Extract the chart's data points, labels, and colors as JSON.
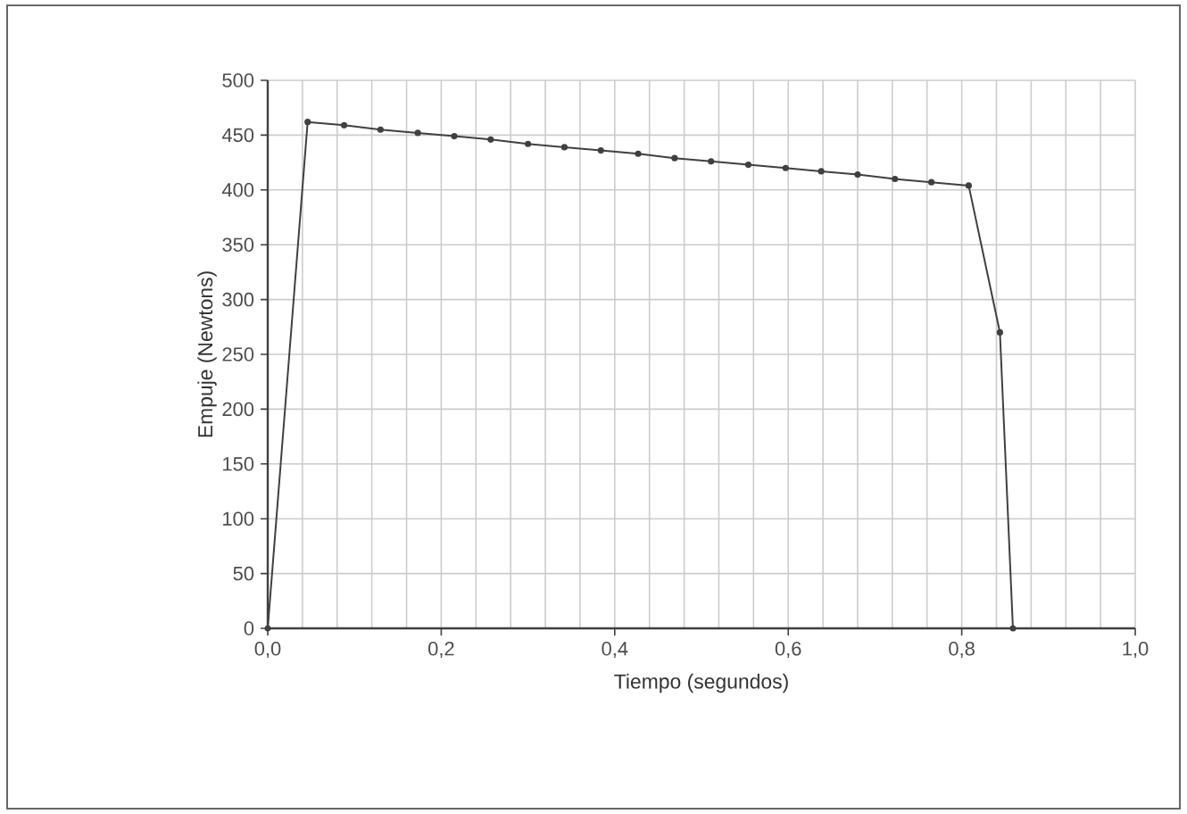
{
  "chart_data": {
    "type": "line",
    "xlabel": "Tiempo  (segundos)",
    "ylabel": "Empuje (Newtons)",
    "x": [
      0,
      0.046,
      0.088,
      0.13,
      0.173,
      0.215,
      0.257,
      0.3,
      0.342,
      0.384,
      0.427,
      0.469,
      0.511,
      0.554,
      0.597,
      0.638,
      0.68,
      0.723,
      0.765,
      0.808,
      0.844,
      0.859
    ],
    "series": [
      {
        "color": "#404040",
        "values": [
          0,
          462,
          459,
          455,
          452,
          449,
          446,
          442,
          439,
          436,
          433,
          429,
          426,
          423,
          420,
          417,
          414,
          410,
          407,
          404,
          270,
          0
        ]
      }
    ],
    "xlim": [
      0,
      1
    ],
    "ylim": [
      0,
      500
    ],
    "xticks": [
      {
        "value": 0,
        "label": "0,0"
      },
      {
        "value": 0.2,
        "label": "0,2"
      },
      {
        "value": 0.4,
        "label": "0,4"
      },
      {
        "value": 0.6,
        "label": "0,6"
      },
      {
        "value": 0.8,
        "label": "0,8"
      },
      {
        "value": 1,
        "label": "1,0"
      }
    ],
    "yticks": [
      0,
      50,
      100,
      150,
      200,
      250,
      300,
      350,
      400,
      450,
      500
    ],
    "grid": true,
    "marker": "circle",
    "line_style": "solid"
  }
}
